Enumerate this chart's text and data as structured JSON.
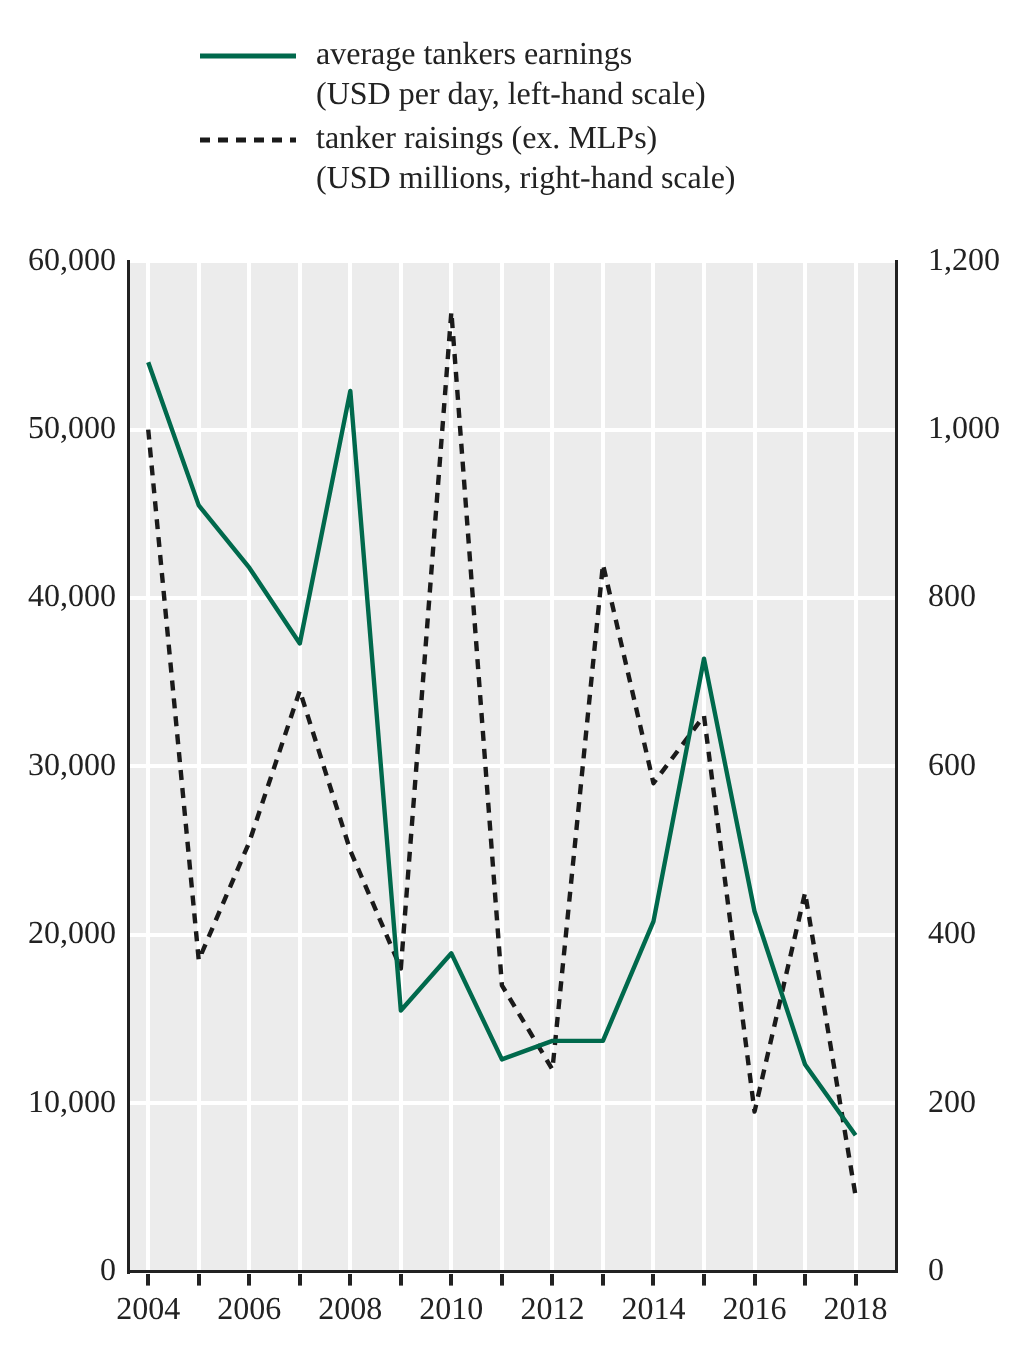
{
  "chart_data": {
    "type": "line",
    "x": [
      2004,
      2005,
      2006,
      2007,
      2008,
      2009,
      2010,
      2011,
      2012,
      2013,
      2014,
      2015,
      2016,
      2017,
      2018
    ],
    "series": [
      {
        "name": "average tankers earnings (USD per day, left-hand scale)",
        "color": "#00694c",
        "line_style": "solid",
        "axis": "y",
        "values": [
          54000,
          45500,
          41800,
          37300,
          52300,
          15500,
          18900,
          12600,
          13700,
          13700,
          20800,
          36400,
          21400,
          12300,
          8100
        ]
      },
      {
        "name": "tanker raisings (ex. MLPs) (USD millions, right-hand scale)",
        "color": "#1a1a1a",
        "line_style": "dashed",
        "axis": "y2",
        "values": [
          1000,
          370,
          510,
          690,
          500,
          360,
          1140,
          340,
          240,
          840,
          580,
          660,
          190,
          450,
          90
        ]
      }
    ],
    "xlim": [
      2003.6,
      2018.8
    ],
    "xticks": [
      2004,
      {
        "value": 2005,
        "label": null
      },
      2006,
      {
        "value": 2007,
        "label": null
      },
      2008,
      {
        "value": 2009,
        "label": null
      },
      2010,
      {
        "value": 2011,
        "label": null
      },
      2012,
      {
        "value": 2013,
        "label": null
      },
      2014,
      {
        "value": 2015,
        "label": null
      },
      2016,
      {
        "value": 2017,
        "label": null
      },
      2018
    ],
    "ylim": [
      0,
      60000
    ],
    "yticks": [
      0,
      {
        "value": 10000,
        "label": "10,000"
      },
      {
        "value": 20000,
        "label": "20,000"
      },
      {
        "value": 30000,
        "label": "30,000"
      },
      {
        "value": 40000,
        "label": "40,000"
      },
      {
        "value": 50000,
        "label": "50,000"
      },
      {
        "value": 60000,
        "label": "60,000"
      }
    ],
    "y2lim": [
      0,
      1200
    ],
    "y2ticks": [
      0,
      200,
      400,
      600,
      800,
      {
        "value": 1000,
        "label": "1,000"
      },
      {
        "value": 1200,
        "label": "1,200"
      }
    ],
    "grid": true,
    "legend": "top",
    "marker": "none"
  }
}
